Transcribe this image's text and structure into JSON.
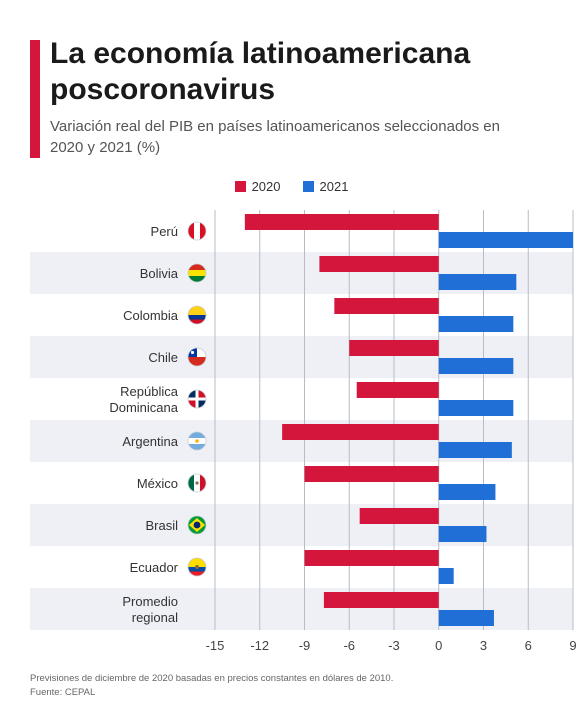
{
  "header": {
    "title": "La economía latinoamericana poscoronavirus",
    "subtitle": "Variación real del PIB en países latinoamericanos seleccionados en 2020 y 2021 (%)"
  },
  "colors": {
    "accent": "#d4163c",
    "series_2020": "#d4163c",
    "series_2021": "#1f6fd6",
    "band": "#eef0f5",
    "grid": "#b8bcc6"
  },
  "chart_data": {
    "type": "bar",
    "orientation": "horizontal",
    "categories": [
      "Perú",
      "Bolivia",
      "Colombia",
      "Chile",
      "República Dominicana",
      "Argentina",
      "México",
      "Brasil",
      "Ecuador",
      "Promedio regional"
    ],
    "category_icons": [
      "peru-flag-icon",
      "bolivia-flag-icon",
      "colombia-flag-icon",
      "chile-flag-icon",
      "dominican-republic-flag-icon",
      "argentina-flag-icon",
      "mexico-flag-icon",
      "brazil-flag-icon",
      "ecuador-flag-icon",
      ""
    ],
    "series": [
      {
        "name": "2020",
        "values": [
          -13.0,
          -8.0,
          -7.0,
          -6.0,
          -5.5,
          -10.5,
          -9.0,
          -5.3,
          -9.0,
          -7.7
        ]
      },
      {
        "name": "2021",
        "values": [
          9.0,
          5.2,
          5.0,
          5.0,
          5.0,
          4.9,
          3.8,
          3.2,
          1.0,
          3.7
        ]
      }
    ],
    "xlim": [
      -15,
      9
    ],
    "xticks": [
      "-15",
      "-12",
      "-9",
      "-6",
      "-3",
      "0",
      "3",
      "6",
      "9"
    ],
    "grid": true,
    "legend_position": "top-center"
  },
  "footnote": {
    "line1": "Previsiones de diciembre de 2020 basadas en precios constantes en dólares de 2010.",
    "line2": "Fuente: CEPAL"
  }
}
